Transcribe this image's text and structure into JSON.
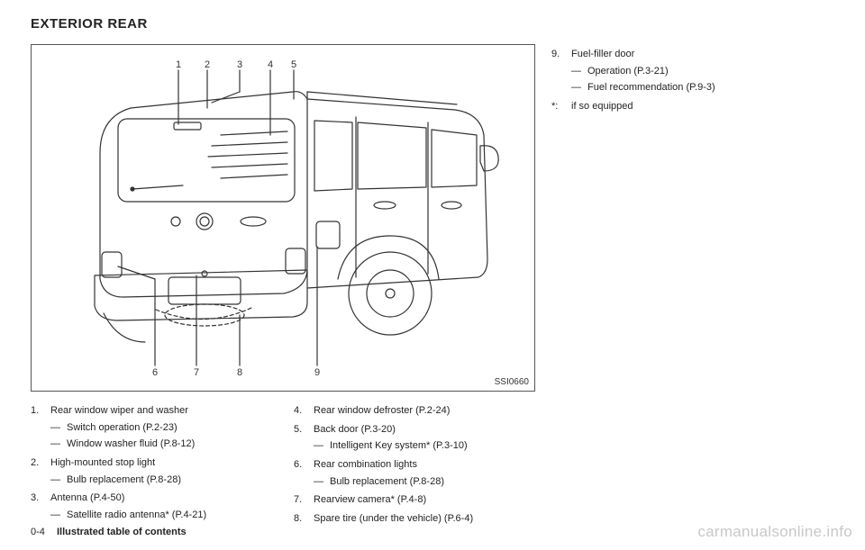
{
  "heading": "EXTERIOR REAR",
  "figure": {
    "code": "SSI0660",
    "callouts_top": [
      "1",
      "2",
      "3",
      "4",
      "5"
    ],
    "callouts_bottom": [
      "6",
      "7",
      "8",
      "9"
    ],
    "colors": {
      "stroke": "#333333",
      "background": "#ffffff",
      "border": "#555555"
    },
    "line_width": 1.2
  },
  "legend_left": [
    {
      "n": "1.",
      "title": "Rear window wiper and washer",
      "subs": [
        "Switch operation (P.2-23)",
        "Window washer fluid (P.8-12)"
      ]
    },
    {
      "n": "2.",
      "title": "High-mounted stop light",
      "subs": [
        "Bulb replacement (P.8-28)"
      ]
    },
    {
      "n": "3.",
      "title": "Antenna (P.4-50)",
      "subs": [
        "Satellite radio antenna* (P.4-21)"
      ]
    }
  ],
  "legend_right": [
    {
      "n": "4.",
      "title": "Rear window defroster (P.2-24)",
      "subs": []
    },
    {
      "n": "5.",
      "title": "Back door (P.3-20)",
      "subs": [
        "Intelligent Key system* (P.3-10)"
      ]
    },
    {
      "n": "6.",
      "title": "Rear combination lights",
      "subs": [
        "Bulb replacement (P.8-28)"
      ]
    },
    {
      "n": "7.",
      "title": "Rearview camera* (P.4-8)",
      "subs": []
    },
    {
      "n": "8.",
      "title": "Spare tire (under the vehicle) (P.6-4)",
      "subs": []
    }
  ],
  "side_list": [
    {
      "n": "9.",
      "title": "Fuel-filler door",
      "subs": [
        "Operation (P.3-21)",
        "Fuel recommendation (P.9-3)"
      ]
    },
    {
      "n": "*:",
      "title": "if so equipped",
      "subs": []
    }
  ],
  "footer": {
    "page": "0-4",
    "title": "Illustrated table of contents"
  },
  "watermark": "carmanualsonline.info",
  "dash": "—"
}
